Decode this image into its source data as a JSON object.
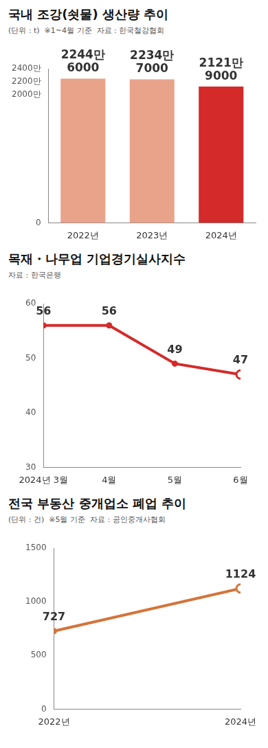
{
  "chart_data": [
    {
      "type": "bar",
      "title": "국내 조강(쇳물) 생산량 추이",
      "subtitle": "(단위 : t)  ※1~4월 기준  자료 : 한국철강협회",
      "categories": [
        "2022년",
        "2023년",
        "2024년"
      ],
      "values": [
        22446000,
        22347000,
        21219000
      ],
      "value_labels": [
        [
          "2244만",
          "6000"
        ],
        [
          "2234만",
          "7000"
        ],
        [
          "2121만",
          "9000"
        ]
      ],
      "colors": [
        "#e9a38b",
        "#e9a38b",
        "#d42a2a"
      ],
      "ylim": [
        0,
        24000000
      ],
      "yticks": [
        0,
        {
          "value": 20000000,
          "label": "2000만"
        },
        {
          "value": 22000000,
          "label": "2200만"
        },
        {
          "value": 24000000,
          "label": "2400만"
        }
      ],
      "grid": false,
      "data_labels": true
    },
    {
      "type": "line",
      "title": "목재・나무업 기업경기실사지수",
      "subtitle": "자료 : 한국은행",
      "categories": [
        "2024년 3월",
        "4월",
        "5월",
        "6월"
      ],
      "values": [
        56,
        56,
        49,
        47
      ],
      "color": "#d42a2a",
      "ylim": [
        30,
        60
      ],
      "yticks": [
        30,
        40,
        50,
        60
      ],
      "grid": false,
      "data_labels": true
    },
    {
      "type": "line",
      "title": "전국 부동산 중개업소 폐업 추이",
      "subtitle": "(단위 : 건)  ※5월 기준  자료 : 공인중개사협회",
      "categories": [
        "2022년",
        "2024년"
      ],
      "values": [
        727,
        1124
      ],
      "color": "#d4743a",
      "ylim": [
        0,
        1500
      ],
      "yticks": [
        0,
        500,
        1000,
        1500
      ],
      "grid": false,
      "data_labels": true
    }
  ]
}
